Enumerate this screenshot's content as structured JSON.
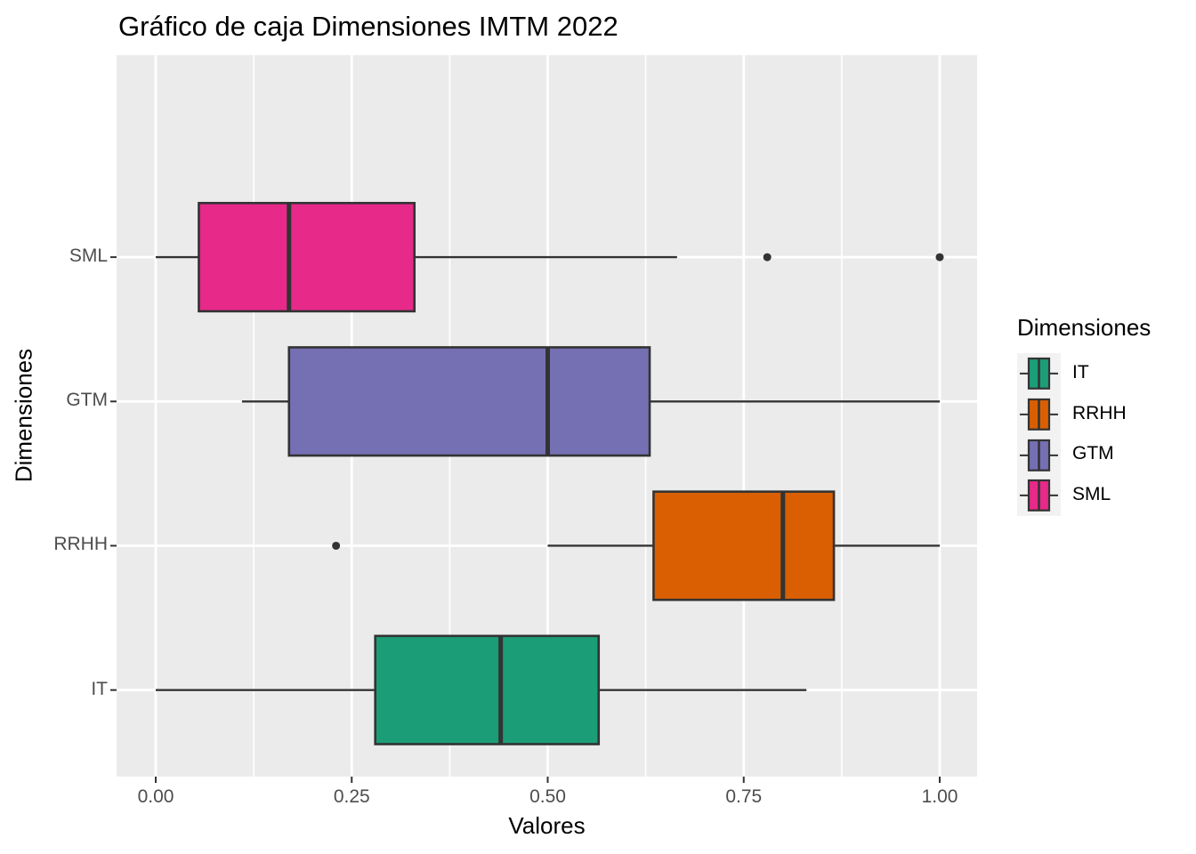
{
  "title": "Gráfico de caja Dimensiones IMTM 2022",
  "colors": {
    "background": "#FFFFFF",
    "panel_background": "#EBEBEB",
    "gridline": "#FFFFFF",
    "box_stroke": "#333333",
    "outlier": "#333333",
    "tick_mark": "#333333",
    "tick_text": "#4D4D4D",
    "text": "#000000",
    "legend_key_background": "#F2F2F2"
  },
  "chart_data": {
    "type": "boxplot",
    "orientation": "horizontal",
    "title": "Gráfico de caja Dimensiones IMTM 2022",
    "xlabel": "Valores",
    "ylabel": "Dimensiones",
    "xlim": [
      -0.05,
      1.05
    ],
    "x_ticks": [
      0.0,
      0.25,
      0.5,
      0.75,
      1.0
    ],
    "x_tick_labels": [
      "0.00",
      "0.25",
      "0.50",
      "0.75",
      "1.00"
    ],
    "x_minor_ticks": [
      0.125,
      0.375,
      0.625,
      0.875
    ],
    "grid": true,
    "categories_top_to_bottom": [
      "SML",
      "GTM",
      "RRHH",
      "IT"
    ],
    "series": [
      {
        "name": "SML",
        "color": "#E7298A",
        "min": 0.0,
        "q1": 0.055,
        "median": 0.17,
        "q3": 0.33,
        "max": 0.665,
        "outliers": [
          0.78,
          1.0
        ]
      },
      {
        "name": "GTM",
        "color": "#7570B3",
        "min": 0.11,
        "q1": 0.17,
        "median": 0.5,
        "q3": 0.63,
        "max": 1.0,
        "outliers": []
      },
      {
        "name": "RRHH",
        "color": "#D95F02",
        "min": 0.5,
        "q1": 0.635,
        "median": 0.8,
        "q3": 0.865,
        "max": 1.0,
        "outliers": [
          0.23
        ]
      },
      {
        "name": "IT",
        "color": "#1B9E77",
        "min": 0.0,
        "q1": 0.28,
        "median": 0.44,
        "q3": 0.565,
        "max": 0.83,
        "outliers": []
      }
    ],
    "legend": {
      "title": "Dimensiones",
      "position": "right",
      "entries": [
        {
          "label": "IT",
          "color": "#1B9E77"
        },
        {
          "label": "RRHH",
          "color": "#D95F02"
        },
        {
          "label": "GTM",
          "color": "#7570B3"
        },
        {
          "label": "SML",
          "color": "#E7298A"
        }
      ]
    }
  }
}
